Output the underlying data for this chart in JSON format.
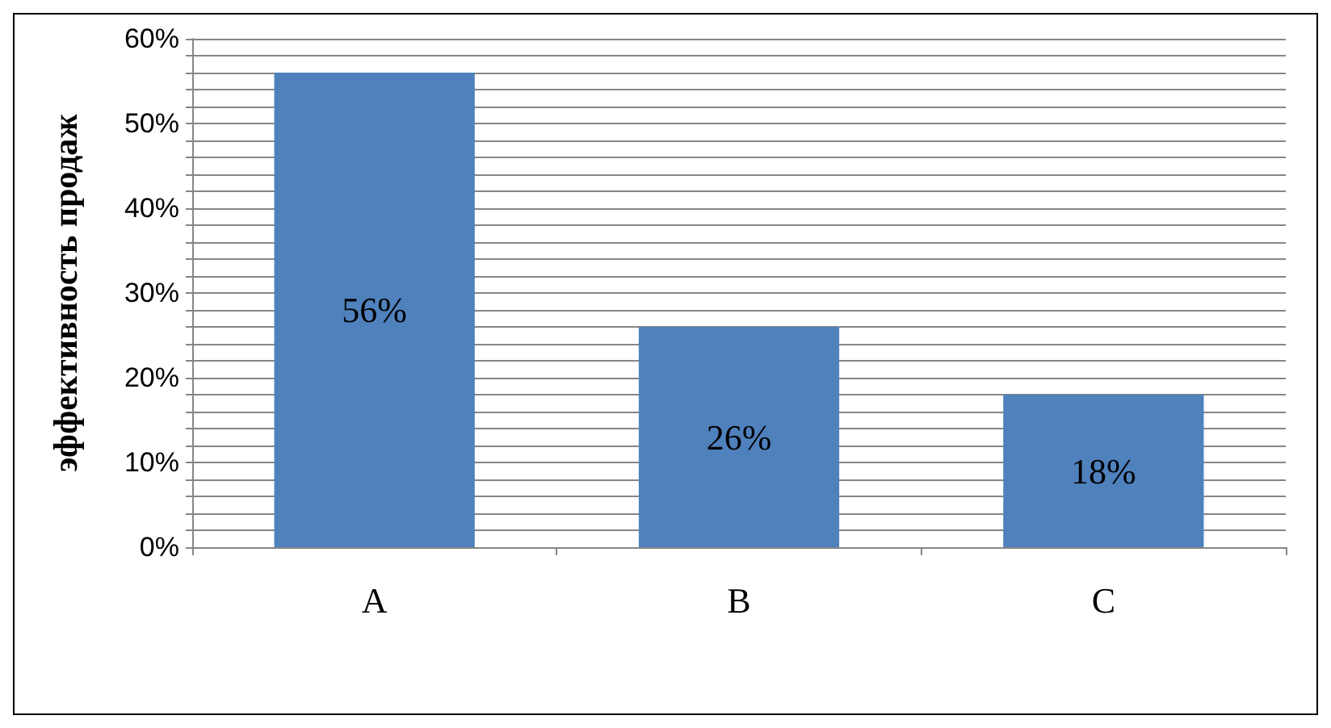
{
  "chart_data": {
    "type": "bar",
    "ylabel": "эффективность продаж",
    "categories": [
      "A",
      "B",
      "C"
    ],
    "values": [
      56,
      26,
      18
    ],
    "value_labels": [
      "56%",
      "26%",
      "18%"
    ],
    "color": "#4f81bd",
    "ylim": [
      0,
      60
    ],
    "yticks": [
      {
        "value": 0,
        "label": "0%"
      },
      {
        "value": 2,
        "label": null
      },
      {
        "value": 4,
        "label": null
      },
      {
        "value": 6,
        "label": null
      },
      {
        "value": 8,
        "label": null
      },
      {
        "value": 10,
        "label": "10%"
      },
      {
        "value": 12,
        "label": null
      },
      {
        "value": 14,
        "label": null
      },
      {
        "value": 16,
        "label": null
      },
      {
        "value": 18,
        "label": null
      },
      {
        "value": 20,
        "label": "20%"
      },
      {
        "value": 22,
        "label": null
      },
      {
        "value": 24,
        "label": null
      },
      {
        "value": 26,
        "label": null
      },
      {
        "value": 28,
        "label": null
      },
      {
        "value": 30,
        "label": "30%"
      },
      {
        "value": 32,
        "label": null
      },
      {
        "value": 34,
        "label": null
      },
      {
        "value": 36,
        "label": null
      },
      {
        "value": 38,
        "label": null
      },
      {
        "value": 40,
        "label": "40%"
      },
      {
        "value": 42,
        "label": null
      },
      {
        "value": 44,
        "label": null
      },
      {
        "value": 46,
        "label": null
      },
      {
        "value": 48,
        "label": null
      },
      {
        "value": 50,
        "label": "50%"
      },
      {
        "value": 52,
        "label": null
      },
      {
        "value": 54,
        "label": null
      },
      {
        "value": 56,
        "label": null
      },
      {
        "value": 58,
        "label": null
      },
      {
        "value": 60,
        "label": "60%"
      }
    ],
    "grid": "y"
  }
}
